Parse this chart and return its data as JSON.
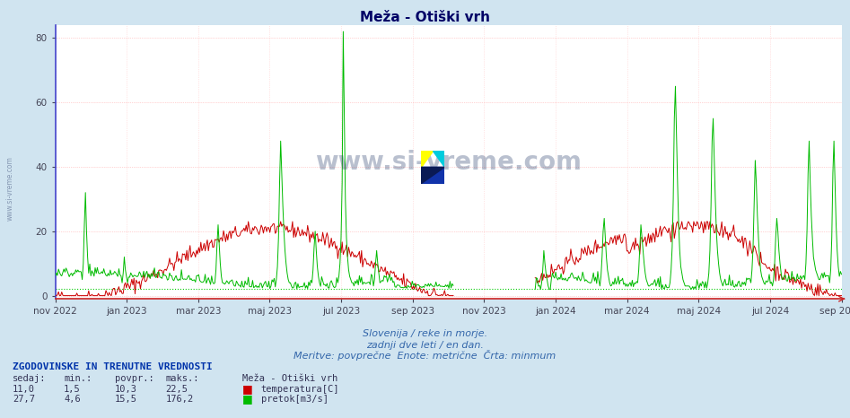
{
  "title": "Meža - Otiški vrh",
  "background_color": "#d0e4f0",
  "plot_background": "#ffffff",
  "x_labels": [
    "nov 2022",
    "jan 2023",
    "mar 2023",
    "maj 2023",
    "jul 2023",
    "sep 2023",
    "nov 2023",
    "jan 2024",
    "mar 2024",
    "maj 2024",
    "jul 2024",
    "sep 2024"
  ],
  "y_ticks": [
    0,
    20,
    40,
    60,
    80
  ],
  "y_min": -1,
  "y_max": 84,
  "temp_color": "#cc0000",
  "flow_color": "#00bb00",
  "min_line_color": "#00cc00",
  "grid_color_h": "#ffaaaa",
  "grid_color_v": "#ffcccc",
  "subtitle1": "Slovenija / reke in morje.",
  "subtitle2": "zadnji dve leti / en dan.",
  "subtitle3": "Meritve: povprečne  Enote: metrične  Črta: minmum",
  "footer_title": "ZGODOVINSKE IN TRENUTNE VREDNOSTI",
  "col_headers": [
    "sedaj:",
    "min.:",
    "povpr.:",
    "maks.:",
    "Meža - Otiški vrh"
  ],
  "row1": [
    "11,0",
    "1,5",
    "10,3",
    "22,5",
    "temperatura[C]"
  ],
  "row2": [
    "27,7",
    "4,6",
    "15,5",
    "176,2",
    "pretok[m3/s]"
  ],
  "watermark": "www.si-vreme.com",
  "watermark_color": "#1a3060",
  "left_spine_color": "#4444cc",
  "bottom_spine_color": "#cc2222",
  "side_label": "www.si-vreme.com"
}
